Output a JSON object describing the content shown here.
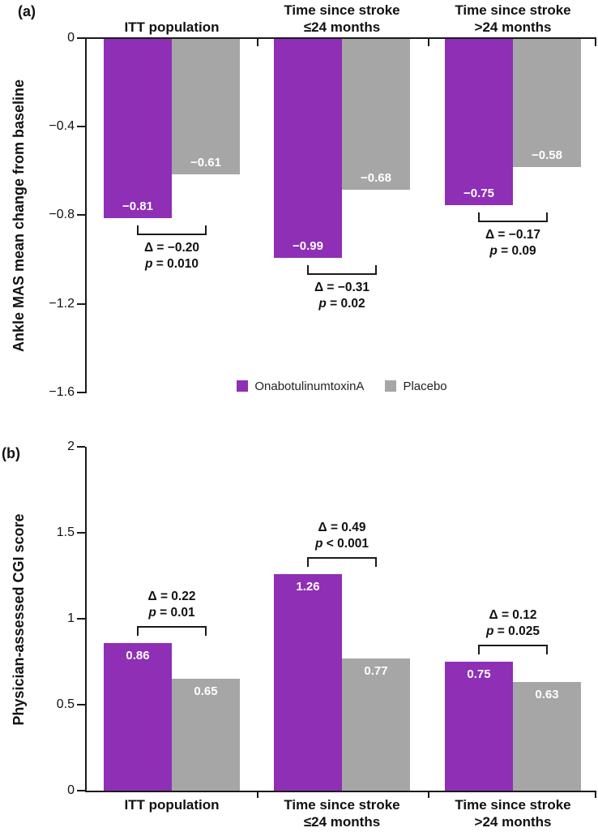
{
  "figure": {
    "panel_labels": {
      "a": "(a)",
      "b": "(b)"
    }
  },
  "colors": {
    "onabotulinumtoxina": "#8E2FB5",
    "placebo": "#A6A6A6",
    "axis": "#1A1A1A",
    "value_label": "#FFFFFF"
  },
  "legend": {
    "position": "below panel a",
    "items": [
      {
        "label": "OnabotulinumtoxinA",
        "color_key": "onabotulinumtoxina"
      },
      {
        "label": "Placebo",
        "color_key": "placebo"
      }
    ]
  },
  "chart_data": [
    {
      "panel": "a",
      "type": "bar",
      "direction": "down",
      "ylabel": "Ankle MAS mean change from baseline",
      "ylim": [
        0,
        -1.6
      ],
      "grid": false,
      "yticks": [
        {
          "value": 0,
          "label": "0"
        },
        {
          "value": -0.4,
          "label": "−0.4"
        },
        {
          "value": -0.8,
          "label": "−0.8"
        },
        {
          "value": -1.2,
          "label": "−1.2"
        },
        {
          "value": -1.6,
          "label": "−1.6"
        }
      ],
      "categories": [
        "ITT population",
        "Time since stroke\n≤24 months",
        "Time since stroke\n>24 months"
      ],
      "category_position": "top",
      "series": [
        {
          "name": "OnabotulinumtoxinA",
          "color_key": "onabotulinumtoxina",
          "values": [
            -0.81,
            -0.99,
            -0.75
          ],
          "value_labels": [
            "−0.81",
            "−0.99",
            "−0.75"
          ]
        },
        {
          "name": "Placebo",
          "color_key": "placebo",
          "values": [
            -0.61,
            -0.68,
            -0.58
          ],
          "value_labels": [
            "−0.61",
            "−0.68",
            "−0.58"
          ]
        }
      ],
      "comparisons": [
        {
          "delta": "Δ = −0.20",
          "p": "p = 0.010"
        },
        {
          "delta": "Δ = −0.31",
          "p": "p = 0.02"
        },
        {
          "delta": "Δ = −0.17",
          "p": "p = 0.09"
        }
      ]
    },
    {
      "panel": "b",
      "type": "bar",
      "direction": "up",
      "ylabel": "Physician-assessed CGI score",
      "ylim": [
        0,
        2
      ],
      "grid": false,
      "yticks": [
        {
          "value": 0,
          "label": "0"
        },
        {
          "value": 0.5,
          "label": "0.5"
        },
        {
          "value": 1,
          "label": "1"
        },
        {
          "value": 1.5,
          "label": "1.5"
        },
        {
          "value": 2,
          "label": "2"
        }
      ],
      "categories": [
        "ITT population",
        "Time since stroke\n≤24 months",
        "Time since stroke\n>24 months"
      ],
      "category_position": "bottom",
      "series": [
        {
          "name": "OnabotulinumtoxinA",
          "color_key": "onabotulinumtoxina",
          "values": [
            0.86,
            1.26,
            0.75
          ],
          "value_labels": [
            "0.86",
            "1.26",
            "0.75"
          ]
        },
        {
          "name": "Placebo",
          "color_key": "placebo",
          "values": [
            0.65,
            0.77,
            0.63
          ],
          "value_labels": [
            "0.65",
            "0.77",
            "0.63"
          ]
        }
      ],
      "comparisons": [
        {
          "delta": "Δ = 0.22",
          "p": "p = 0.01"
        },
        {
          "delta": "Δ = 0.49",
          "p": "p < 0.001"
        },
        {
          "delta": "Δ = 0.12",
          "p": "p = 0.025"
        }
      ]
    }
  ]
}
